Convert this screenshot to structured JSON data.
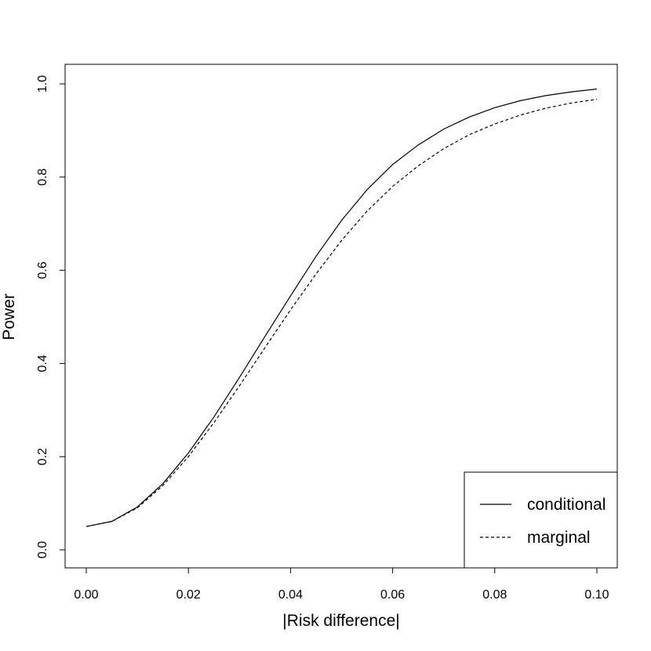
{
  "chart_data": {
    "type": "line",
    "xlabel": "|Risk difference|",
    "ylabel": "Power",
    "xlim": [
      0.0,
      0.1
    ],
    "ylim": [
      0.0,
      1.0
    ],
    "xticks": [
      "0.00",
      "0.02",
      "0.04",
      "0.06",
      "0.08",
      "0.10"
    ],
    "yticks": [
      "0.0",
      "0.2",
      "0.4",
      "0.6",
      "0.8",
      "1.0"
    ],
    "x": [
      0.0,
      0.005,
      0.01,
      0.015,
      0.02,
      0.025,
      0.03,
      0.035,
      0.04,
      0.045,
      0.05,
      0.055,
      0.06,
      0.065,
      0.07,
      0.075,
      0.08,
      0.085,
      0.09,
      0.095,
      0.1
    ],
    "series": [
      {
        "name": "conditional",
        "line_style": "solid",
        "values": [
          0.05,
          0.061,
          0.092,
          0.142,
          0.208,
          0.285,
          0.37,
          0.458,
          0.545,
          0.63,
          0.707,
          0.773,
          0.827,
          0.869,
          0.903,
          0.929,
          0.949,
          0.964,
          0.975,
          0.983,
          0.989
        ]
      },
      {
        "name": "marginal",
        "line_style": "dashed",
        "values": [
          0.05,
          0.061,
          0.09,
          0.138,
          0.2,
          0.273,
          0.352,
          0.434,
          0.515,
          0.592,
          0.664,
          0.727,
          0.78,
          0.824,
          0.861,
          0.891,
          0.914,
          0.933,
          0.948,
          0.959,
          0.967
        ]
      }
    ],
    "legend_position": "bottom-right",
    "grid": false
  }
}
